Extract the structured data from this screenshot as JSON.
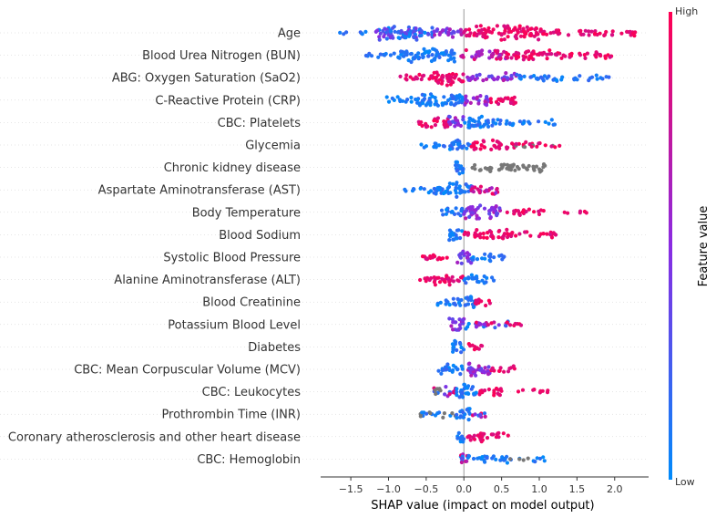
{
  "chart_data": {
    "type": "scatter",
    "subtype": "shap-beeswarm",
    "xlabel": "SHAP value (impact on model output)",
    "xlim": [
      -1.9,
      2.45
    ],
    "xticks": [
      -1.5,
      -1.0,
      -0.5,
      0.0,
      0.5,
      1.0,
      1.5,
      2.0
    ],
    "xtick_labels": [
      "−1.5",
      "−1.0",
      "−0.5",
      "0.0",
      "0.5",
      "1.0",
      "1.5",
      "2.0"
    ],
    "colorbar": {
      "label": "Feature value",
      "high": "High",
      "low": "Low",
      "high_color": "#ff0052",
      "mid_color": "#8a2be2",
      "low_color": "#008bfb"
    },
    "missing_color": "#777777",
    "features": [
      {
        "name": "Age",
        "segments": [
          [
            -1.7,
            -1.2,
            0.06,
            "low"
          ],
          [
            -1.2,
            -0.4,
            1.0,
            "low-mid"
          ],
          [
            -0.4,
            0.0,
            0.5,
            "mid"
          ],
          [
            0.0,
            1.0,
            0.9,
            "high"
          ],
          [
            1.0,
            2.3,
            0.35,
            "high"
          ]
        ]
      },
      {
        "name": "Blood Urea Nitrogen (BUN)",
        "segments": [
          [
            -1.3,
            -0.9,
            0.2,
            "low"
          ],
          [
            -0.9,
            -0.1,
            0.9,
            "low"
          ],
          [
            -0.1,
            0.6,
            0.6,
            "mid-high"
          ],
          [
            0.6,
            1.3,
            0.6,
            "high"
          ],
          [
            1.3,
            2.0,
            0.3,
            "high"
          ]
        ]
      },
      {
        "name": "ABG: Oxygen Saturation (SaO2)",
        "segments": [
          [
            -0.9,
            -0.4,
            0.3,
            "high"
          ],
          [
            -0.4,
            0.0,
            1.0,
            "high"
          ],
          [
            0.0,
            0.7,
            0.5,
            "mid"
          ],
          [
            0.7,
            1.4,
            0.35,
            "low"
          ],
          [
            1.4,
            1.95,
            0.2,
            "low"
          ]
        ]
      },
      {
        "name": "C-Reactive Protein (CRP)",
        "segments": [
          [
            -1.05,
            -0.6,
            0.3,
            "low"
          ],
          [
            -0.6,
            0.0,
            0.9,
            "low"
          ],
          [
            0.0,
            0.35,
            0.7,
            "mid"
          ],
          [
            0.35,
            0.7,
            0.5,
            "high"
          ]
        ]
      },
      {
        "name": "CBC: Platelets",
        "segments": [
          [
            -0.6,
            -0.2,
            0.6,
            "high"
          ],
          [
            -0.2,
            0.0,
            0.9,
            "mid"
          ],
          [
            0.0,
            0.4,
            0.8,
            "low"
          ],
          [
            0.4,
            1.25,
            0.25,
            "low"
          ]
        ]
      },
      {
        "name": "Glycemia",
        "segments": [
          [
            -0.6,
            -0.2,
            0.2,
            "low"
          ],
          [
            -0.2,
            0.1,
            0.7,
            "low"
          ],
          [
            0.1,
            0.6,
            0.6,
            "high"
          ],
          [
            0.6,
            1.3,
            0.3,
            "high-na"
          ]
        ]
      },
      {
        "name": "Chronic kidney disease",
        "segments": [
          [
            -0.12,
            0.0,
            0.9,
            "low"
          ],
          [
            0.1,
            1.1,
            0.5,
            "na"
          ]
        ]
      },
      {
        "name": "Aspartate Aminotransferase (AST)",
        "segments": [
          [
            -0.8,
            -0.4,
            0.2,
            "low"
          ],
          [
            -0.4,
            0.1,
            0.9,
            "low"
          ],
          [
            0.1,
            0.45,
            0.6,
            "mid-high"
          ]
        ]
      },
      {
        "name": "Body Temperature",
        "segments": [
          [
            -0.3,
            0.0,
            0.5,
            "low"
          ],
          [
            0.0,
            0.5,
            0.9,
            "mid"
          ],
          [
            0.5,
            1.1,
            0.3,
            "high"
          ],
          [
            1.3,
            1.7,
            0.06,
            "high"
          ]
        ]
      },
      {
        "name": "Blood Sodium",
        "segments": [
          [
            -0.2,
            0.0,
            0.9,
            "low"
          ],
          [
            0.0,
            0.6,
            0.6,
            "high"
          ],
          [
            0.6,
            1.25,
            0.3,
            "high"
          ]
        ]
      },
      {
        "name": "Systolic Blood Pressure",
        "segments": [
          [
            -0.55,
            -0.1,
            0.3,
            "high"
          ],
          [
            -0.1,
            0.1,
            0.9,
            "mid"
          ],
          [
            0.1,
            0.55,
            0.4,
            "low"
          ]
        ]
      },
      {
        "name": "Alanine Aminotransferase (ALT)",
        "segments": [
          [
            -0.65,
            -0.4,
            0.1,
            "high"
          ],
          [
            -0.4,
            0.0,
            0.6,
            "high"
          ],
          [
            0.0,
            0.4,
            0.5,
            "low"
          ]
        ]
      },
      {
        "name": "Blood Creatinine",
        "segments": [
          [
            -0.35,
            0.0,
            0.4,
            "low"
          ],
          [
            0.0,
            0.15,
            0.9,
            "low"
          ],
          [
            0.15,
            0.35,
            0.4,
            "high"
          ]
        ]
      },
      {
        "name": "Potassium Blood Level",
        "segments": [
          [
            -0.2,
            0.0,
            0.9,
            "mid"
          ],
          [
            0.0,
            0.6,
            0.4,
            "mixed"
          ],
          [
            0.6,
            0.8,
            0.1,
            "high"
          ]
        ]
      },
      {
        "name": "Diabetes",
        "segments": [
          [
            -0.15,
            0.0,
            0.9,
            "low"
          ],
          [
            0.05,
            0.25,
            0.4,
            "high"
          ]
        ]
      },
      {
        "name": "CBC: Mean Corpuscular Volume (MCV)",
        "segments": [
          [
            -0.35,
            0.0,
            0.6,
            "low"
          ],
          [
            0.0,
            0.35,
            0.9,
            "mid"
          ],
          [
            0.35,
            0.7,
            0.3,
            "high"
          ]
        ]
      },
      {
        "name": "CBC: Leukocytes",
        "segments": [
          [
            -0.4,
            -0.1,
            0.6,
            "mixed-na"
          ],
          [
            -0.1,
            0.2,
            0.9,
            "low"
          ],
          [
            0.2,
            0.5,
            0.5,
            "high"
          ],
          [
            0.7,
            1.2,
            0.1,
            "high"
          ]
        ]
      },
      {
        "name": "Prothrombin Time (INR)",
        "segments": [
          [
            -0.6,
            -0.1,
            0.3,
            "low-na"
          ],
          [
            -0.1,
            0.1,
            0.7,
            "low"
          ],
          [
            0.1,
            0.3,
            0.3,
            "mixed"
          ]
        ]
      },
      {
        "name": "Coronary atherosclerosis and other heart disease",
        "segments": [
          [
            -0.1,
            0.0,
            0.9,
            "low"
          ],
          [
            0.05,
            0.6,
            0.5,
            "high"
          ]
        ]
      },
      {
        "name": "CBC: Hemoglobin",
        "segments": [
          [
            -0.05,
            0.05,
            0.9,
            "mixed"
          ],
          [
            0.05,
            0.6,
            0.4,
            "low"
          ],
          [
            0.6,
            1.1,
            0.2,
            "low-na"
          ]
        ]
      }
    ]
  }
}
